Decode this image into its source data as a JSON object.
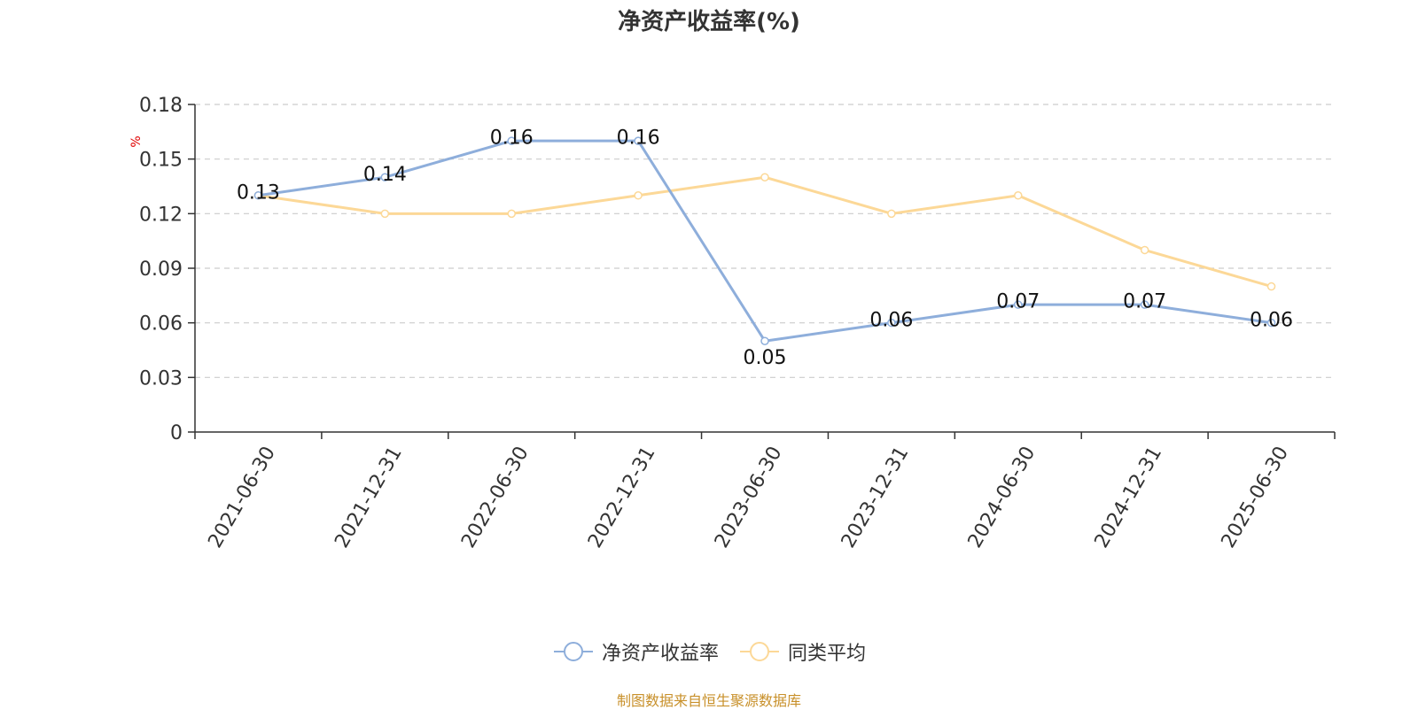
{
  "title": "净资产收益率(%)",
  "source": "制图数据来自恒生聚源数据库",
  "colors": {
    "series1": "#8eaedb",
    "series2": "#fcd897",
    "ylabel": "#e00000",
    "source": "#c8902a",
    "grid": "#cccccc",
    "axis": "#333333"
  },
  "chart_data": {
    "type": "line",
    "title": "净资产收益率(%)",
    "ylabel": "%",
    "x": [
      "2021-06-30",
      "2021-12-31",
      "2022-06-30",
      "2022-12-31",
      "2023-06-30",
      "2023-12-31",
      "2024-06-30",
      "2024-12-31",
      "2025-06-30"
    ],
    "yticks": [
      "0",
      "0.03",
      "0.06",
      "0.09",
      "0.12",
      "0.15",
      "0.18"
    ],
    "ylim": [
      0,
      0.18
    ],
    "grid": true,
    "legend": "bottom-center",
    "series": [
      {
        "name": "净资产收益率",
        "values": [
          0.13,
          0.14,
          0.16,
          0.16,
          0.05,
          0.06,
          0.07,
          0.07,
          0.06
        ],
        "labels": [
          "0.13",
          "0.14",
          "0.16",
          "0.16",
          "0.05",
          "0.06",
          "0.07",
          "0.07",
          "0.06"
        ]
      },
      {
        "name": "同类平均",
        "values": [
          0.13,
          0.12,
          0.12,
          0.13,
          0.14,
          0.12,
          0.13,
          0.1,
          0.08
        ]
      }
    ]
  }
}
